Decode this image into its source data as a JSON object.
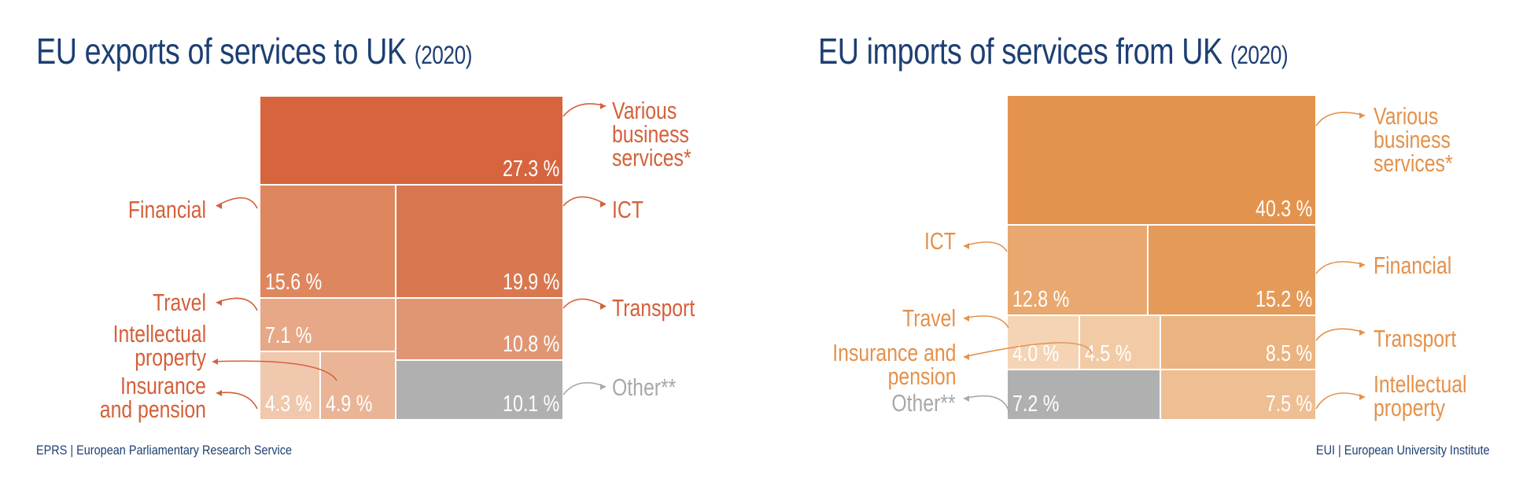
{
  "colors": {
    "title": "#1d3f72",
    "exports_label": "#d4603a",
    "imports_label": "#e4914b",
    "other": "#a8a8a8"
  },
  "footer": {
    "left": "EPRS | European Parliamentary Research Service",
    "right": "EUI | European University Institute"
  },
  "chart_data": [
    {
      "type": "treemap",
      "title": "EU exports of services to UK",
      "year": "(2020)",
      "items": [
        {
          "key": "various",
          "name": "Various\nbusiness\nservices*",
          "value": 27.3,
          "label": "27.3 %",
          "color": "#d6653e"
        },
        {
          "key": "ict",
          "name": "ICT",
          "value": 19.9,
          "label": "19.9 %",
          "color": "#d97850"
        },
        {
          "key": "financial",
          "name": "Financial",
          "value": 15.6,
          "label": "15.6 %",
          "color": "#de875f"
        },
        {
          "key": "transport",
          "name": "Transport",
          "value": 10.8,
          "label": "10.8 %",
          "color": "#e09673"
        },
        {
          "key": "other",
          "name": "Other**",
          "value": 10.1,
          "label": "10.1 %",
          "color": "#b1b0b0"
        },
        {
          "key": "travel",
          "name": "Travel",
          "value": 7.1,
          "label": "7.1 %",
          "color": "#e6a886"
        },
        {
          "key": "ip",
          "name": "Intellectual\nproperty",
          "value": 4.9,
          "label": "4.9 %",
          "color": "#e9b596"
        },
        {
          "key": "insurance",
          "name": "Insurance\nand pension",
          "value": 4.3,
          "label": "4.3 %",
          "color": "#f0c8ad"
        }
      ]
    },
    {
      "type": "treemap",
      "title": "EU imports of services from UK",
      "year": "(2020)",
      "items": [
        {
          "key": "various",
          "name": "Various\nbusiness\nservices*",
          "value": 40.3,
          "label": "40.3 %",
          "color": "#e3934d"
        },
        {
          "key": "financial",
          "name": "Financial",
          "value": 15.2,
          "label": "15.2 %",
          "color": "#e49b5a"
        },
        {
          "key": "ict",
          "name": "ICT",
          "value": 12.8,
          "label": "12.8 %",
          "color": "#e8a86f"
        },
        {
          "key": "transport",
          "name": "Transport",
          "value": 8.5,
          "label": "8.5 %",
          "color": "#ebb37f"
        },
        {
          "key": "ip",
          "name": "Intellectual\nproperty",
          "value": 7.5,
          "label": "7.5 %",
          "color": "#eebf92"
        },
        {
          "key": "other",
          "name": "Other**",
          "value": 7.2,
          "label": "7.2 %",
          "color": "#b1b0b0"
        },
        {
          "key": "insurance",
          "name": "Insurance and\npension",
          "value": 4.5,
          "label": "4.5 %",
          "color": "#f2cba6"
        },
        {
          "key": "travel",
          "name": "Travel",
          "value": 4.0,
          "label": "4.0 %",
          "color": "#f4d4b5"
        }
      ]
    }
  ]
}
